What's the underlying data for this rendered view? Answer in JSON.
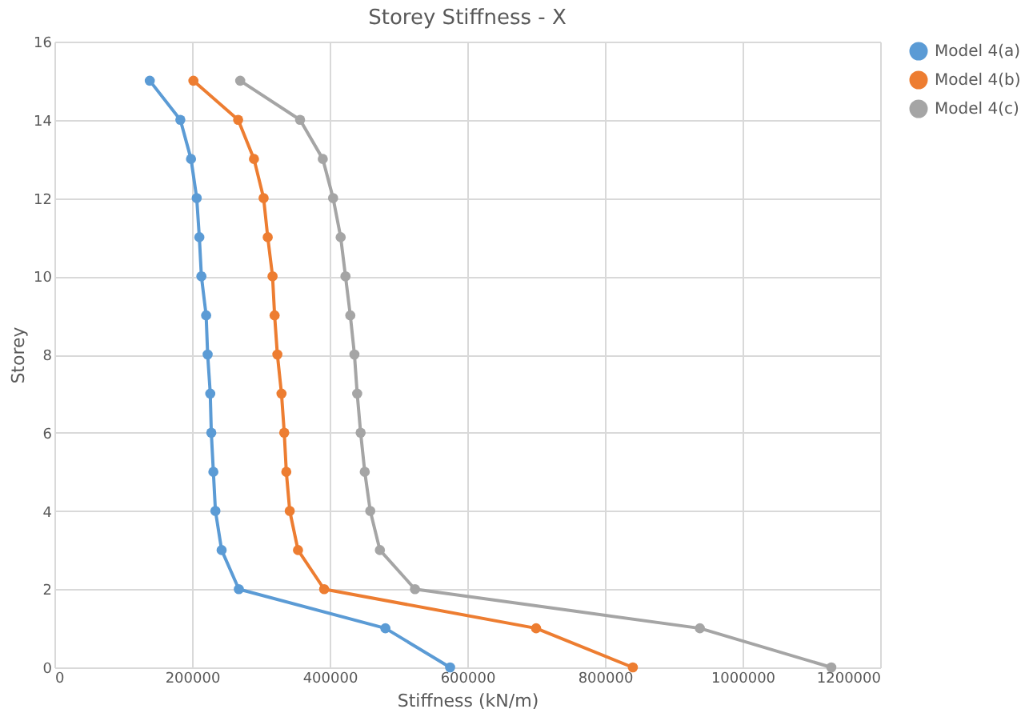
{
  "chart_data": {
    "type": "line",
    "title": "Storey Stiffness - X",
    "xlabel": "Stiffness (kN/m)",
    "ylabel": "Storey",
    "xlim": [
      0,
      1200000
    ],
    "xticks": [
      0,
      200000,
      400000,
      600000,
      800000,
      1000000,
      1200000
    ],
    "ylim": [
      0,
      16
    ],
    "yticks": [
      0,
      2,
      4,
      6,
      8,
      10,
      12,
      14,
      16
    ],
    "grid": true,
    "legend": "right",
    "marker": "circle",
    "line_style": "solid",
    "series": [
      {
        "name": "Model 4(a)",
        "color": "#5b9bd5",
        "x": [
          575000,
          481000,
          268000,
          243000,
          234000,
          231000,
          228000,
          226500,
          222700,
          220500,
          213600,
          210600,
          206800,
          198500,
          183000,
          138600
        ],
        "values": [
          0,
          1,
          2,
          3,
          4,
          5,
          6,
          7,
          8,
          9,
          10,
          11,
          12,
          13,
          14,
          15
        ]
      },
      {
        "name": "Model 4(b)",
        "color": "#ed7d31",
        "x": [
          840600,
          700000,
          392000,
          354000,
          342000,
          337000,
          334000,
          330000,
          324000,
          320000,
          317000,
          310000,
          304000,
          290000,
          267000,
          202000
        ],
        "values": [
          0,
          1,
          2,
          3,
          4,
          5,
          6,
          7,
          8,
          9,
          10,
          11,
          12,
          13,
          14,
          15
        ]
      },
      {
        "name": "Model 4(c)",
        "color": "#a5a5a5",
        "x": [
          1129000,
          938000,
          524000,
          473000,
          459000,
          451000,
          445000,
          440000,
          436000,
          430000,
          423000,
          416000,
          405000,
          390000,
          357000,
          270000
        ],
        "values": [
          0,
          1,
          2,
          3,
          4,
          5,
          6,
          7,
          8,
          9,
          10,
          11,
          12,
          13,
          14,
          15
        ]
      }
    ]
  }
}
